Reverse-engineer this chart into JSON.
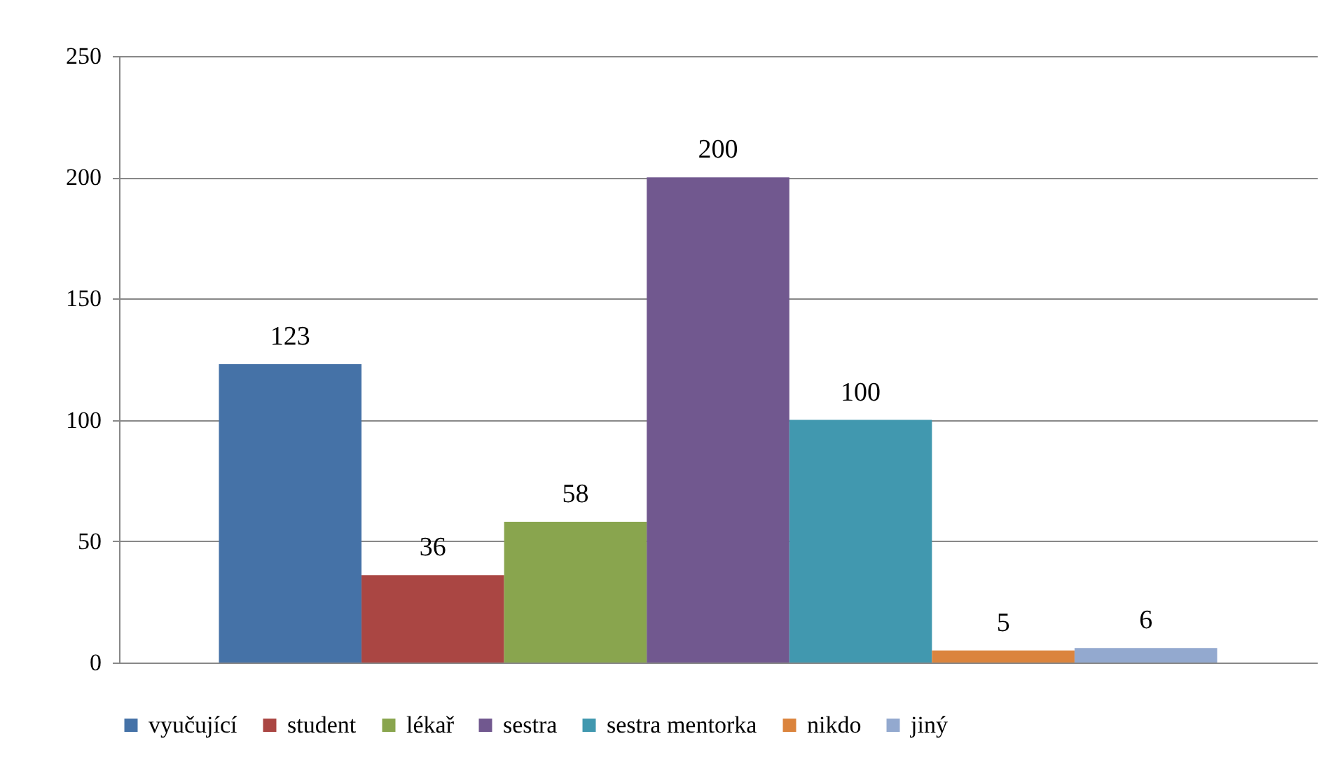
{
  "chart_data": {
    "type": "bar",
    "categories": [
      null
    ],
    "series": [
      {
        "name": "vyučující",
        "color": "#4572a7",
        "values": [
          123
        ]
      },
      {
        "name": "student",
        "color": "#aa4643",
        "values": [
          36
        ]
      },
      {
        "name": "lékař",
        "color": "#89a54e",
        "values": [
          58
        ]
      },
      {
        "name": "sestra",
        "color": "#71588f",
        "values": [
          200
        ]
      },
      {
        "name": "sestra mentorka",
        "color": "#4198af",
        "values": [
          100
        ]
      },
      {
        "name": "nikdo",
        "color": "#db843d",
        "values": [
          5
        ]
      },
      {
        "name": "jiný",
        "color": "#93a9cf",
        "values": [
          6
        ]
      }
    ],
    "ylim": [
      0,
      250
    ],
    "yticks": [
      0,
      50,
      100,
      150,
      200,
      250
    ],
    "grid": "y",
    "legend": "bottom",
    "data_labels": true
  }
}
